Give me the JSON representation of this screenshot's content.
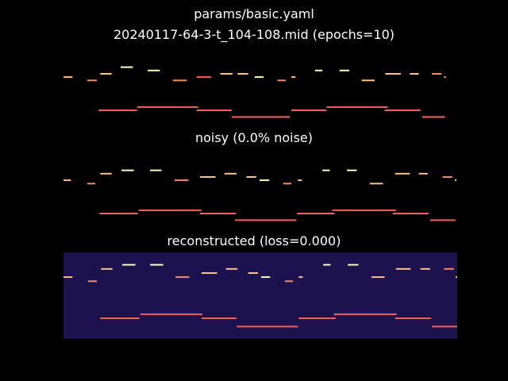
{
  "figure": {
    "title_line1": "params/basic.yaml",
    "title_line2": "20240117-64-3-t_104-108.mid (epochs=10)"
  },
  "colors": {
    "background": "#000000",
    "recon_background": "#1c1250",
    "cold": "#f0605d",
    "warm": "#fb8861",
    "hot": "#fec287",
    "white": "#fcfdbf"
  },
  "chart_data": [
    {
      "type": "heatmap",
      "title": "",
      "background": "#000000",
      "notes": [
        {
          "start": 0,
          "end": 11,
          "pitch": 62,
          "v": 0.92
        },
        {
          "start": 29,
          "end": 41,
          "pitch": 61,
          "v": 0.85
        },
        {
          "start": 45,
          "end": 59,
          "pitch": 63,
          "v": 0.93
        },
        {
          "start": 70,
          "end": 85,
          "pitch": 65,
          "v": 0.98
        },
        {
          "start": 103,
          "end": 118,
          "pitch": 64,
          "v": 1.0
        },
        {
          "start": 134,
          "end": 151,
          "pitch": 61,
          "v": 0.85
        },
        {
          "start": 163,
          "end": 181,
          "pitch": 62,
          "v": 0.75
        },
        {
          "start": 192,
          "end": 207,
          "pitch": 63,
          "v": 0.95
        },
        {
          "start": 213,
          "end": 226,
          "pitch": 63,
          "v": 0.92
        },
        {
          "start": 234,
          "end": 245,
          "pitch": 62,
          "v": 1.0
        },
        {
          "start": 262,
          "end": 272,
          "pitch": 61,
          "v": 0.85
        },
        {
          "start": 279,
          "end": 284,
          "pitch": 62,
          "v": 0.95
        },
        {
          "start": 308,
          "end": 317,
          "pitch": 64,
          "v": 1.0
        },
        {
          "start": 338,
          "end": 350,
          "pitch": 64,
          "v": 1.0
        },
        {
          "start": 365,
          "end": 381,
          "pitch": 61,
          "v": 0.9
        },
        {
          "start": 394,
          "end": 413,
          "pitch": 63,
          "v": 0.95
        },
        {
          "start": 424,
          "end": 435,
          "pitch": 63,
          "v": 0.95
        },
        {
          "start": 451,
          "end": 463,
          "pitch": 63,
          "v": 0.8
        },
        {
          "start": 466,
          "end": 468,
          "pitch": 62,
          "v": 0.9
        },
        {
          "start": 43,
          "end": 90,
          "pitch": 52,
          "v": 0.65
        },
        {
          "start": 90,
          "end": 165,
          "pitch": 53,
          "v": 0.7
        },
        {
          "start": 163,
          "end": 206,
          "pitch": 52,
          "v": 0.65
        },
        {
          "start": 206,
          "end": 277,
          "pitch": 50,
          "v": 0.65
        },
        {
          "start": 279,
          "end": 322,
          "pitch": 52,
          "v": 0.65
        },
        {
          "start": 322,
          "end": 397,
          "pitch": 53,
          "v": 0.7
        },
        {
          "start": 393,
          "end": 437,
          "pitch": 52,
          "v": 0.65
        },
        {
          "start": 439,
          "end": 467,
          "pitch": 50,
          "v": 0.65
        }
      ]
    },
    {
      "type": "heatmap",
      "title": "noisy (0.0% noise)",
      "background": "#000000",
      "notes": [
        {
          "start": 0,
          "end": 9,
          "pitch": 62,
          "v": 0.92
        },
        {
          "start": 29,
          "end": 39,
          "pitch": 61,
          "v": 0.85
        },
        {
          "start": 45,
          "end": 59,
          "pitch": 64,
          "v": 0.93
        },
        {
          "start": 71,
          "end": 86,
          "pitch": 65,
          "v": 0.98
        },
        {
          "start": 106,
          "end": 120,
          "pitch": 65,
          "v": 1.0
        },
        {
          "start": 136,
          "end": 153,
          "pitch": 62,
          "v": 0.85
        },
        {
          "start": 167,
          "end": 186,
          "pitch": 63,
          "v": 0.93
        },
        {
          "start": 197,
          "end": 212,
          "pitch": 64,
          "v": 0.95
        },
        {
          "start": 224,
          "end": 236,
          "pitch": 63,
          "v": 0.93
        },
        {
          "start": 240,
          "end": 252,
          "pitch": 62,
          "v": 1.0
        },
        {
          "start": 269,
          "end": 279,
          "pitch": 61,
          "v": 0.85
        },
        {
          "start": 287,
          "end": 292,
          "pitch": 62,
          "v": 0.95
        },
        {
          "start": 317,
          "end": 326,
          "pitch": 65,
          "v": 0.98
        },
        {
          "start": 347,
          "end": 359,
          "pitch": 65,
          "v": 1.0
        },
        {
          "start": 375,
          "end": 391,
          "pitch": 61,
          "v": 0.9
        },
        {
          "start": 406,
          "end": 424,
          "pitch": 64,
          "v": 0.95
        },
        {
          "start": 435,
          "end": 446,
          "pitch": 64,
          "v": 0.95
        },
        {
          "start": 464,
          "end": 476,
          "pitch": 63,
          "v": 0.8
        },
        {
          "start": 479,
          "end": 481,
          "pitch": 62,
          "v": 0.9
        },
        {
          "start": 44,
          "end": 91,
          "pitch": 52,
          "v": 0.65
        },
        {
          "start": 92,
          "end": 169,
          "pitch": 53,
          "v": 0.7
        },
        {
          "start": 167,
          "end": 211,
          "pitch": 52,
          "v": 0.65
        },
        {
          "start": 210,
          "end": 285,
          "pitch": 50,
          "v": 0.65
        },
        {
          "start": 286,
          "end": 332,
          "pitch": 52,
          "v": 0.65
        },
        {
          "start": 329,
          "end": 407,
          "pitch": 53,
          "v": 0.7
        },
        {
          "start": 403,
          "end": 447,
          "pitch": 52,
          "v": 0.65
        },
        {
          "start": 449,
          "end": 480,
          "pitch": 50,
          "v": 0.65
        }
      ]
    },
    {
      "type": "heatmap",
      "title": "reconstructed (loss=0.000)",
      "background": "#1c1250",
      "notes": [
        {
          "start": 0,
          "end": 11,
          "pitch": 62,
          "v": 0.92
        },
        {
          "start": 30,
          "end": 41,
          "pitch": 61,
          "v": 0.85
        },
        {
          "start": 46,
          "end": 60,
          "pitch": 64,
          "v": 0.93
        },
        {
          "start": 72,
          "end": 88,
          "pitch": 65,
          "v": 0.98
        },
        {
          "start": 106,
          "end": 122,
          "pitch": 65,
          "v": 1.0
        },
        {
          "start": 137,
          "end": 154,
          "pitch": 62,
          "v": 0.85
        },
        {
          "start": 169,
          "end": 188,
          "pitch": 63,
          "v": 0.93
        },
        {
          "start": 199,
          "end": 213,
          "pitch": 64,
          "v": 0.95
        },
        {
          "start": 226,
          "end": 238,
          "pitch": 63,
          "v": 0.93
        },
        {
          "start": 242,
          "end": 253,
          "pitch": 62,
          "v": 1.0
        },
        {
          "start": 271,
          "end": 281,
          "pitch": 61,
          "v": 0.85
        },
        {
          "start": 288,
          "end": 293,
          "pitch": 62,
          "v": 0.95
        },
        {
          "start": 318,
          "end": 327,
          "pitch": 65,
          "v": 0.98
        },
        {
          "start": 348,
          "end": 361,
          "pitch": 65,
          "v": 1.0
        },
        {
          "start": 377,
          "end": 393,
          "pitch": 62,
          "v": 0.9
        },
        {
          "start": 407,
          "end": 425,
          "pitch": 64,
          "v": 0.95
        },
        {
          "start": 437,
          "end": 449,
          "pitch": 64,
          "v": 0.95
        },
        {
          "start": 466,
          "end": 478,
          "pitch": 64,
          "v": 0.8
        },
        {
          "start": 480,
          "end": 482,
          "pitch": 62,
          "v": 0.9
        },
        {
          "start": 45,
          "end": 93,
          "pitch": 52,
          "v": 0.65
        },
        {
          "start": 94,
          "end": 170,
          "pitch": 53,
          "v": 0.7
        },
        {
          "start": 169,
          "end": 212,
          "pitch": 52,
          "v": 0.65
        },
        {
          "start": 212,
          "end": 287,
          "pitch": 50,
          "v": 0.65
        },
        {
          "start": 288,
          "end": 333,
          "pitch": 52,
          "v": 0.65
        },
        {
          "start": 331,
          "end": 408,
          "pitch": 53,
          "v": 0.7
        },
        {
          "start": 406,
          "end": 450,
          "pitch": 52,
          "v": 0.65
        },
        {
          "start": 451,
          "end": 482,
          "pitch": 50,
          "v": 0.65
        }
      ]
    }
  ]
}
